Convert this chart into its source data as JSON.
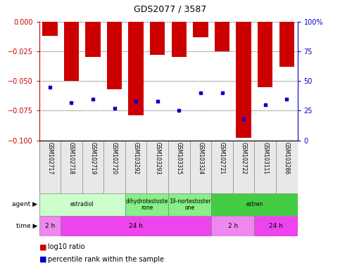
{
  "title": "GDS2077 / 3587",
  "samples": [
    "GSM102717",
    "GSM102718",
    "GSM102719",
    "GSM102720",
    "GSM103292",
    "GSM103293",
    "GSM103315",
    "GSM103324",
    "GSM102721",
    "GSM102722",
    "GSM103111",
    "GSM103286"
  ],
  "log10_ratio": [
    -0.012,
    -0.05,
    -0.03,
    -0.057,
    -0.079,
    -0.028,
    -0.03,
    -0.013,
    -0.025,
    -0.098,
    -0.055,
    -0.038
  ],
  "percentile_rank": [
    45,
    32,
    35,
    27,
    33,
    33,
    25,
    40,
    40,
    18,
    30,
    35
  ],
  "ylim_left": [
    -0.1,
    0.0
  ],
  "ylim_right": [
    0,
    100
  ],
  "yticks_left": [
    0.0,
    -0.025,
    -0.05,
    -0.075,
    -0.1
  ],
  "yticks_right": [
    0,
    25,
    50,
    75,
    100
  ],
  "bar_color": "#cc0000",
  "dot_color": "#0000cc",
  "agent_groups": [
    {
      "label": "estradiol",
      "start": 0,
      "end": 4,
      "color": "#ccffcc"
    },
    {
      "label": "dihydrotestoste\nrone",
      "start": 4,
      "end": 6,
      "color": "#88ee88"
    },
    {
      "label": "19-nortestoster\none",
      "start": 6,
      "end": 8,
      "color": "#88ee88"
    },
    {
      "label": "estren",
      "start": 8,
      "end": 12,
      "color": "#44cc44"
    }
  ],
  "time_groups": [
    {
      "label": "2 h",
      "start": 0,
      "end": 1,
      "color": "#ee88ee"
    },
    {
      "label": "24 h",
      "start": 1,
      "end": 8,
      "color": "#ee44ee"
    },
    {
      "label": "2 h",
      "start": 8,
      "end": 10,
      "color": "#ee88ee"
    },
    {
      "label": "24 h",
      "start": 10,
      "end": 12,
      "color": "#ee44ee"
    }
  ],
  "legend_bar_color": "#cc0000",
  "legend_dot_color": "#0000cc",
  "legend_bar_label": "log10 ratio",
  "legend_dot_label": "percentile rank within the sample",
  "left_tick_color": "#cc0000",
  "right_tick_color": "#0000cc"
}
